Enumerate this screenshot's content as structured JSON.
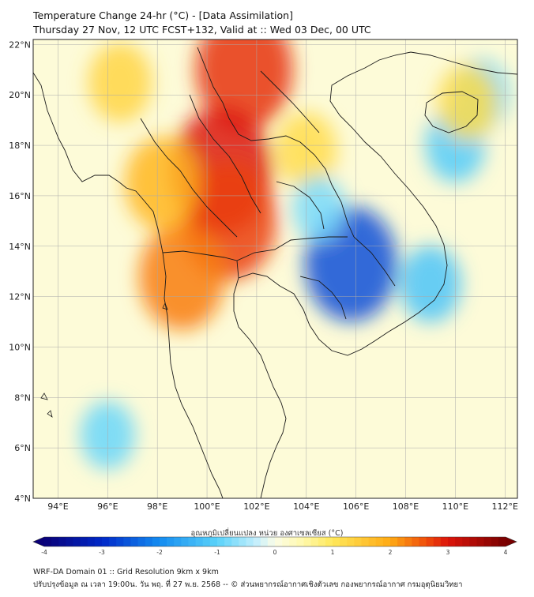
{
  "title": {
    "line1": "Temperature Change 24-hr (°C) - [Data Assimilation]",
    "line2": "Thursday 27 Nov, 12 UTC FCST+132, Valid at :: Wed 03 Dec, 00 UTC"
  },
  "axes": {
    "lon_ticks": [
      "94°E",
      "96°E",
      "98°E",
      "100°E",
      "102°E",
      "104°E",
      "106°E",
      "108°E",
      "110°E",
      "112°E"
    ],
    "lat_ticks": [
      "22°N",
      "20°N",
      "18°N",
      "16°N",
      "14°N",
      "12°N",
      "10°N",
      "8°N",
      "6°N",
      "4°N"
    ],
    "lon_range": [
      93.0,
      112.5
    ],
    "lat_range": [
      4.0,
      22.2
    ]
  },
  "field": {
    "description_units": "°C",
    "blobs": [
      {
        "lon": 101.5,
        "lat": 21.0,
        "value": 2.8
      },
      {
        "lon": 100.6,
        "lat": 17.0,
        "value": 3.0
      },
      {
        "lon": 100.9,
        "lat": 15.0,
        "value": 2.7
      },
      {
        "lon": 99.0,
        "lat": 12.8,
        "value": 2.3
      },
      {
        "lon": 98.2,
        "lat": 16.5,
        "value": 1.8
      },
      {
        "lon": 96.5,
        "lat": 20.5,
        "value": 1.3
      },
      {
        "lon": 104.0,
        "lat": 17.8,
        "value": 1.2
      },
      {
        "lon": 105.8,
        "lat": 13.3,
        "value": -2.6
      },
      {
        "lon": 104.5,
        "lat": 15.5,
        "value": -0.8
      },
      {
        "lon": 109.0,
        "lat": 12.5,
        "value": -1.2
      },
      {
        "lon": 110.0,
        "lat": 18.0,
        "value": -1.1
      },
      {
        "lon": 96.0,
        "lat": 6.5,
        "value": -0.9
      },
      {
        "lon": 111.0,
        "lat": 20.0,
        "value": -1.0
      },
      {
        "lon": 110.5,
        "lat": 19.7,
        "value": 1.2
      }
    ]
  },
  "colorbar": {
    "title": "อุณหภูมิเปลี่ยนแปลง หน่วย องศาเซลเซียส (°C)",
    "min": -4,
    "max": 4,
    "ticks": [
      "-4",
      "-3",
      "-2",
      "-1",
      "0",
      "1",
      "2",
      "3",
      "4"
    ]
  },
  "footer": {
    "line1": "WRF-DA Domain 01 :: Grid Resolution 9km x 9km",
    "line2": "ปรับปรุงข้อมูล ณ เวลา 19:00น. วัน พฤ. ที่ 27 พ.ย. 2568 -- © ส่วนพยากรณ์อากาศเชิงตัวเลข กองพยากรณ์อากาศ กรมอุตุนิยมวิทยา"
  }
}
